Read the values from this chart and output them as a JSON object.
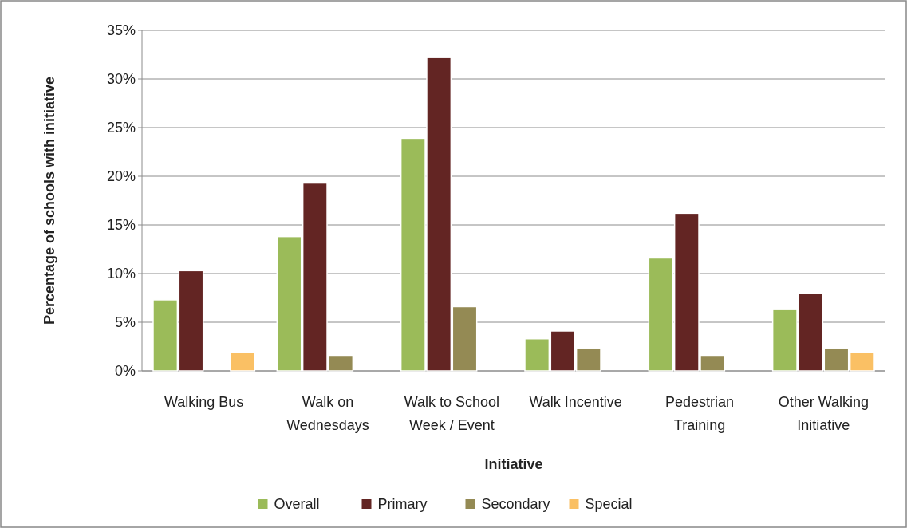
{
  "chart_data": {
    "type": "bar",
    "xlabel": "Initiative",
    "ylabel": "Percentage of schools with initiative",
    "categories": [
      "Walking Bus",
      "Walk on Wednesdays",
      "Walk to School Week / Event",
      "Walk Incentive",
      "Pedestrian Training",
      "Other Walking Initiative"
    ],
    "series": [
      {
        "name": "Overall",
        "color": "#9bbb59",
        "values": [
          7.3,
          13.8,
          23.9,
          3.3,
          11.6,
          6.3
        ]
      },
      {
        "name": "Primary",
        "color": "#632523",
        "values": [
          10.3,
          19.3,
          32.2,
          4.1,
          16.2,
          8.0
        ]
      },
      {
        "name": "Secondary",
        "color": "#948a54",
        "values": [
          null,
          1.6,
          6.6,
          2.3,
          1.6,
          2.3
        ]
      },
      {
        "name": "Special",
        "color": "#fac064",
        "values": [
          1.9,
          null,
          null,
          null,
          null,
          1.9
        ]
      }
    ],
    "ylim": [
      0,
      35
    ],
    "yticks": [
      {
        "value": 0,
        "label": "0%"
      },
      {
        "value": 5,
        "label": "5%"
      },
      {
        "value": 10,
        "label": "10%"
      },
      {
        "value": 15,
        "label": "15%"
      },
      {
        "value": 20,
        "label": "20%"
      },
      {
        "value": 25,
        "label": "25%"
      },
      {
        "value": 30,
        "label": "30%"
      },
      {
        "value": 35,
        "label": "35%"
      }
    ],
    "grid": "y",
    "legend": "bottom"
  }
}
